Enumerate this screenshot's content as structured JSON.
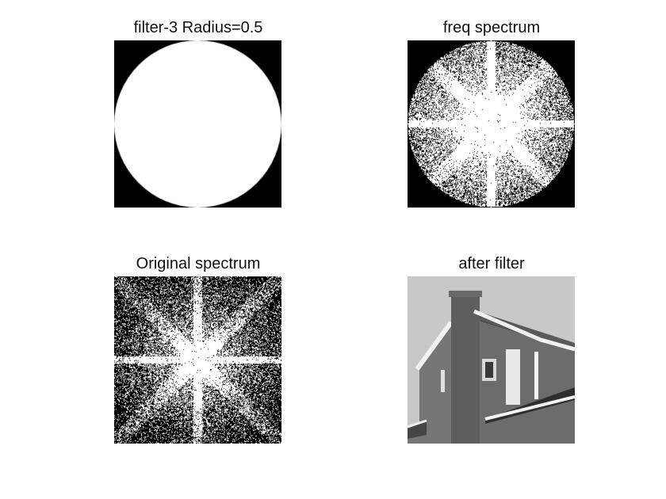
{
  "figure": {
    "panels": [
      {
        "title": "filter-3 Radius=0.5",
        "icon": "circular-filter-mask",
        "colors": {
          "mask": "#ffffff",
          "background": "#000000"
        }
      },
      {
        "title": "freq spectrum",
        "icon": "masked-frequency-spectrum",
        "colors": {
          "points": "#ffffff",
          "background": "#000000"
        }
      },
      {
        "title": "Original spectrum",
        "icon": "frequency-spectrum",
        "colors": {
          "points": "#ffffff",
          "background": "#000000"
        }
      },
      {
        "title": "after filter",
        "icon": "house-photo",
        "colors": {
          "sky": "#c8c8c8",
          "wall": "#6e6e6e",
          "roof": "#3c3c3c",
          "trim": "#f2f2f2"
        }
      }
    ]
  }
}
